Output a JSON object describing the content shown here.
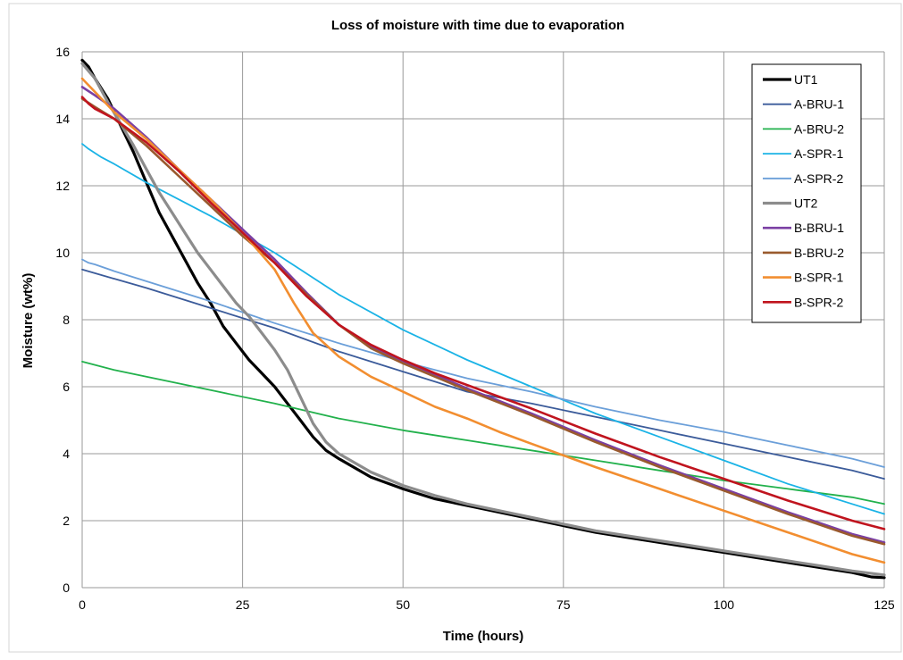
{
  "chart_data": {
    "type": "line",
    "title": "Loss of moisture with time due to evaporation",
    "xlabel": "Time (hours)",
    "ylabel": "Moisture (wt%)",
    "xlim": [
      0,
      125
    ],
    "ylim": [
      0,
      16
    ],
    "xticks": [
      "0",
      "25",
      "50",
      "75",
      "100",
      "125"
    ],
    "yticks": [
      "0",
      "2",
      "4",
      "6",
      "8",
      "10",
      "12",
      "14",
      "16"
    ],
    "grid": true,
    "legend_position": "top-right",
    "series": [
      {
        "name": "UT1",
        "color": "#000000",
        "width": 3.2,
        "points": [
          [
            0,
            15.75
          ],
          [
            1,
            15.55
          ],
          [
            2,
            15.2
          ],
          [
            4,
            14.6
          ],
          [
            6,
            13.8
          ],
          [
            8,
            13.0
          ],
          [
            10,
            12.1
          ],
          [
            12,
            11.2
          ],
          [
            14,
            10.5
          ],
          [
            16,
            9.8
          ],
          [
            18,
            9.1
          ],
          [
            20,
            8.5
          ],
          [
            22,
            7.8
          ],
          [
            24,
            7.3
          ],
          [
            26,
            6.8
          ],
          [
            28,
            6.4
          ],
          [
            30,
            6.0
          ],
          [
            32,
            5.5
          ],
          [
            34,
            5.0
          ],
          [
            36,
            4.5
          ],
          [
            38,
            4.1
          ],
          [
            40,
            3.85
          ],
          [
            45,
            3.3
          ],
          [
            50,
            2.95
          ],
          [
            55,
            2.65
          ],
          [
            60,
            2.45
          ],
          [
            65,
            2.25
          ],
          [
            70,
            2.05
          ],
          [
            75,
            1.85
          ],
          [
            80,
            1.65
          ],
          [
            85,
            1.5
          ],
          [
            90,
            1.35
          ],
          [
            95,
            1.2
          ],
          [
            100,
            1.05
          ],
          [
            105,
            0.9
          ],
          [
            110,
            0.75
          ],
          [
            115,
            0.6
          ],
          [
            120,
            0.45
          ],
          [
            123,
            0.32
          ],
          [
            125,
            0.3
          ]
        ]
      },
      {
        "name": "A-BRU-1",
        "color": "#3b5b9a",
        "width": 1.8,
        "points": [
          [
            0,
            9.5
          ],
          [
            10,
            8.95
          ],
          [
            20,
            8.35
          ],
          [
            30,
            7.75
          ],
          [
            40,
            7.05
          ],
          [
            50,
            6.45
          ],
          [
            60,
            5.85
          ],
          [
            70,
            5.5
          ],
          [
            80,
            5.1
          ],
          [
            90,
            4.7
          ],
          [
            100,
            4.3
          ],
          [
            110,
            3.9
          ],
          [
            120,
            3.5
          ],
          [
            125,
            3.25
          ]
        ]
      },
      {
        "name": "A-BRU-2",
        "color": "#22b14c",
        "width": 1.8,
        "points": [
          [
            0,
            6.75
          ],
          [
            1,
            6.7
          ],
          [
            5,
            6.5
          ],
          [
            10,
            6.3
          ],
          [
            20,
            5.9
          ],
          [
            30,
            5.5
          ],
          [
            40,
            5.05
          ],
          [
            50,
            4.7
          ],
          [
            60,
            4.4
          ],
          [
            70,
            4.1
          ],
          [
            80,
            3.8
          ],
          [
            90,
            3.5
          ],
          [
            100,
            3.2
          ],
          [
            110,
            2.95
          ],
          [
            120,
            2.7
          ],
          [
            125,
            2.5
          ]
        ]
      },
      {
        "name": "A-SPR-1",
        "color": "#1ab3e6",
        "width": 1.8,
        "points": [
          [
            0,
            13.25
          ],
          [
            1,
            13.1
          ],
          [
            3,
            12.85
          ],
          [
            5,
            12.65
          ],
          [
            10,
            12.1
          ],
          [
            20,
            11.1
          ],
          [
            30,
            10.0
          ],
          [
            40,
            8.75
          ],
          [
            50,
            7.7
          ],
          [
            60,
            6.8
          ],
          [
            70,
            6.0
          ],
          [
            80,
            5.2
          ],
          [
            90,
            4.5
          ],
          [
            100,
            3.8
          ],
          [
            110,
            3.1
          ],
          [
            120,
            2.5
          ],
          [
            125,
            2.2
          ]
        ]
      },
      {
        "name": "A-SPR-2",
        "color": "#6b9fd9",
        "width": 1.8,
        "points": [
          [
            0,
            9.8
          ],
          [
            1,
            9.7
          ],
          [
            2,
            9.65
          ],
          [
            5,
            9.45
          ],
          [
            10,
            9.15
          ],
          [
            20,
            8.55
          ],
          [
            30,
            7.9
          ],
          [
            40,
            7.3
          ],
          [
            50,
            6.75
          ],
          [
            60,
            6.25
          ],
          [
            70,
            5.85
          ],
          [
            80,
            5.4
          ],
          [
            90,
            5.0
          ],
          [
            100,
            4.65
          ],
          [
            110,
            4.25
          ],
          [
            120,
            3.85
          ],
          [
            125,
            3.6
          ]
        ]
      },
      {
        "name": "UT2",
        "color": "#8c8c8c",
        "width": 3.2,
        "points": [
          [
            0,
            15.65
          ],
          [
            2,
            15.2
          ],
          [
            4,
            14.5
          ],
          [
            6,
            13.85
          ],
          [
            8,
            13.2
          ],
          [
            10,
            12.5
          ],
          [
            12,
            11.8
          ],
          [
            14,
            11.2
          ],
          [
            16,
            10.6
          ],
          [
            18,
            10.0
          ],
          [
            20,
            9.5
          ],
          [
            22,
            9.0
          ],
          [
            24,
            8.5
          ],
          [
            26,
            8.1
          ],
          [
            28,
            7.6
          ],
          [
            30,
            7.1
          ],
          [
            32,
            6.5
          ],
          [
            34,
            5.7
          ],
          [
            36,
            4.9
          ],
          [
            38,
            4.35
          ],
          [
            40,
            4.0
          ],
          [
            45,
            3.45
          ],
          [
            50,
            3.05
          ],
          [
            55,
            2.75
          ],
          [
            60,
            2.5
          ],
          [
            65,
            2.3
          ],
          [
            70,
            2.1
          ],
          [
            75,
            1.9
          ],
          [
            80,
            1.7
          ],
          [
            85,
            1.55
          ],
          [
            90,
            1.4
          ],
          [
            95,
            1.25
          ],
          [
            100,
            1.1
          ],
          [
            105,
            0.95
          ],
          [
            110,
            0.8
          ],
          [
            115,
            0.65
          ],
          [
            120,
            0.5
          ],
          [
            125,
            0.38
          ]
        ]
      },
      {
        "name": "B-BRU-1",
        "color": "#7b3fa3",
        "width": 2.6,
        "points": [
          [
            0,
            14.95
          ],
          [
            2,
            14.7
          ],
          [
            5,
            14.3
          ],
          [
            10,
            13.45
          ],
          [
            15,
            12.5
          ],
          [
            20,
            11.6
          ],
          [
            25,
            10.7
          ],
          [
            30,
            9.8
          ],
          [
            35,
            8.8
          ],
          [
            40,
            7.85
          ],
          [
            45,
            7.2
          ],
          [
            50,
            6.75
          ],
          [
            55,
            6.35
          ],
          [
            60,
            5.95
          ],
          [
            70,
            5.2
          ],
          [
            80,
            4.4
          ],
          [
            90,
            3.65
          ],
          [
            100,
            2.95
          ],
          [
            110,
            2.25
          ],
          [
            120,
            1.6
          ],
          [
            125,
            1.35
          ]
        ]
      },
      {
        "name": "B-BRU-2",
        "color": "#9a5a2e",
        "width": 2.6,
        "points": [
          [
            0,
            14.6
          ],
          [
            2,
            14.35
          ],
          [
            5,
            14.0
          ],
          [
            10,
            13.2
          ],
          [
            15,
            12.3
          ],
          [
            20,
            11.4
          ],
          [
            25,
            10.5
          ],
          [
            30,
            9.7
          ],
          [
            35,
            8.75
          ],
          [
            40,
            7.85
          ],
          [
            45,
            7.15
          ],
          [
            50,
            6.7
          ],
          [
            55,
            6.3
          ],
          [
            60,
            5.9
          ],
          [
            70,
            5.15
          ],
          [
            80,
            4.35
          ],
          [
            90,
            3.6
          ],
          [
            100,
            2.9
          ],
          [
            110,
            2.2
          ],
          [
            120,
            1.55
          ],
          [
            125,
            1.3
          ]
        ]
      },
      {
        "name": "B-SPR-1",
        "color": "#f28e30",
        "width": 2.6,
        "points": [
          [
            0,
            15.2
          ],
          [
            2,
            14.8
          ],
          [
            5,
            14.2
          ],
          [
            10,
            13.4
          ],
          [
            15,
            12.5
          ],
          [
            20,
            11.6
          ],
          [
            25,
            10.6
          ],
          [
            30,
            9.5
          ],
          [
            33,
            8.5
          ],
          [
            36,
            7.6
          ],
          [
            40,
            6.9
          ],
          [
            45,
            6.3
          ],
          [
            50,
            5.85
          ],
          [
            55,
            5.4
          ],
          [
            60,
            5.05
          ],
          [
            65,
            4.65
          ],
          [
            70,
            4.3
          ],
          [
            75,
            3.95
          ],
          [
            80,
            3.6
          ],
          [
            90,
            2.95
          ],
          [
            100,
            2.3
          ],
          [
            110,
            1.65
          ],
          [
            120,
            1.0
          ],
          [
            125,
            0.75
          ]
        ]
      },
      {
        "name": "B-SPR-2",
        "color": "#c0141e",
        "width": 2.6,
        "points": [
          [
            0,
            14.65
          ],
          [
            1,
            14.45
          ],
          [
            2,
            14.3
          ],
          [
            5,
            14.0
          ],
          [
            10,
            13.3
          ],
          [
            15,
            12.45
          ],
          [
            20,
            11.5
          ],
          [
            25,
            10.6
          ],
          [
            30,
            9.7
          ],
          [
            35,
            8.7
          ],
          [
            40,
            7.85
          ],
          [
            45,
            7.25
          ],
          [
            50,
            6.8
          ],
          [
            55,
            6.4
          ],
          [
            60,
            6.05
          ],
          [
            70,
            5.35
          ],
          [
            80,
            4.6
          ],
          [
            90,
            3.9
          ],
          [
            100,
            3.25
          ],
          [
            110,
            2.6
          ],
          [
            120,
            2.0
          ],
          [
            125,
            1.75
          ]
        ]
      }
    ]
  }
}
